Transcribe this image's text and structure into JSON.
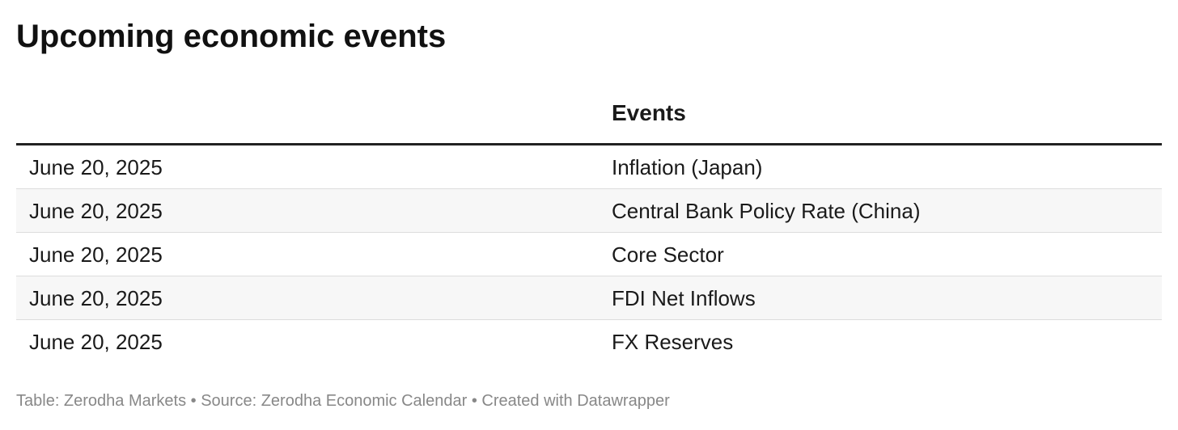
{
  "title": "Upcoming economic events",
  "table": {
    "header": "Events",
    "rows": [
      [
        "June 20, 2025",
        "Inflation (Japan)"
      ],
      [
        "June 20, 2025",
        "Central Bank Policy Rate (China)"
      ],
      [
        "June 20, 2025",
        "Core Sector"
      ],
      [
        "June 20, 2025",
        "FDI Net Inflows"
      ],
      [
        "June 20, 2025",
        "FX Reserves"
      ]
    ]
  },
  "footer": "Table: Zerodha Markets • Source: Zerodha Economic Calendar • Created with Datawrapper"
}
